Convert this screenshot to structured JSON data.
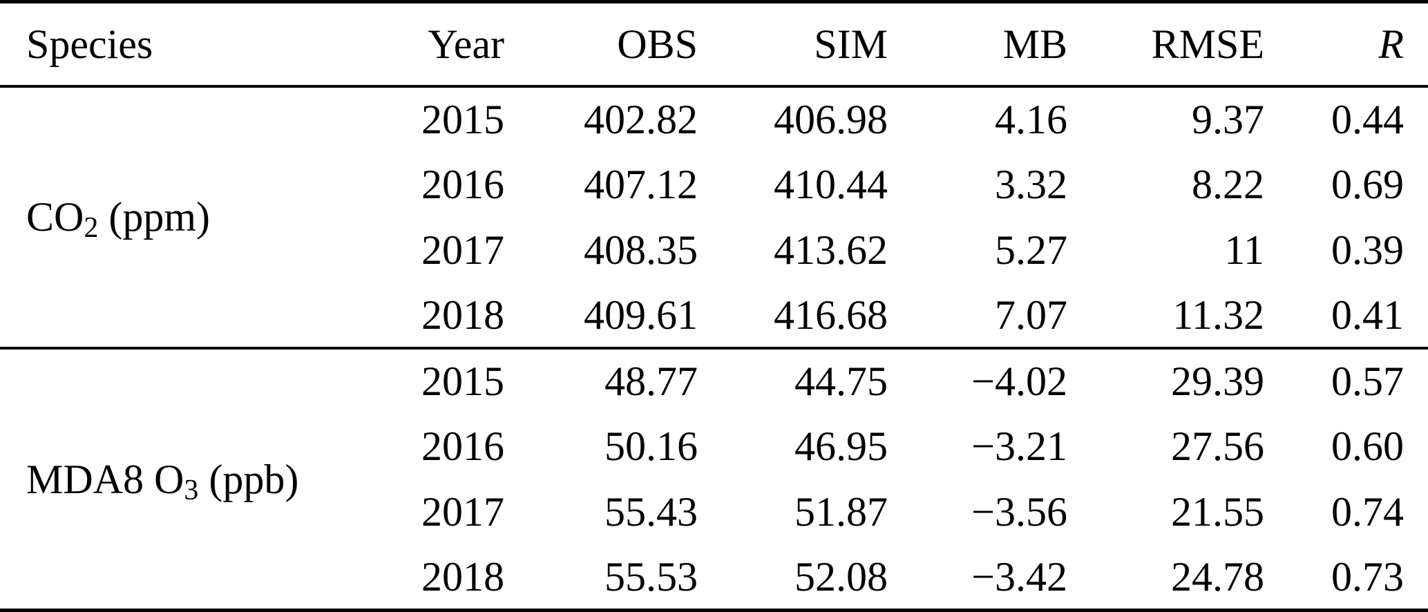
{
  "table": {
    "headers": {
      "species": "Species",
      "year": "Year",
      "obs": "OBS",
      "sim": "SIM",
      "mb": "MB",
      "rmse": "RMSE",
      "r": "R"
    },
    "groups": [
      {
        "species_base": "CO",
        "species_sub": "2",
        "species_suffix": " (ppm)",
        "species_full": "CO2 (ppm)",
        "rows": [
          {
            "year": "2015",
            "obs": "402.82",
            "sim": "406.98",
            "mb": "4.16",
            "rmse": "9.37",
            "r": "0.44"
          },
          {
            "year": "2016",
            "obs": "407.12",
            "sim": "410.44",
            "mb": "3.32",
            "rmse": "8.22",
            "r": "0.69"
          },
          {
            "year": "2017",
            "obs": "408.35",
            "sim": "413.62",
            "mb": "5.27",
            "rmse": "11",
            "r": "0.39"
          },
          {
            "year": "2018",
            "obs": "409.61",
            "sim": "416.68",
            "mb": "7.07",
            "rmse": "11.32",
            "r": "0.41"
          }
        ]
      },
      {
        "species_base": "MDA8 O",
        "species_sub": "3",
        "species_suffix": " (ppb)",
        "species_full": "MDA8 O3 (ppb)",
        "rows": [
          {
            "year": "2015",
            "obs": "48.77",
            "sim": "44.75",
            "mb": "−4.02",
            "rmse": "29.39",
            "r": "0.57"
          },
          {
            "year": "2016",
            "obs": "50.16",
            "sim": "46.95",
            "mb": "−3.21",
            "rmse": "27.56",
            "r": "0.60"
          },
          {
            "year": "2017",
            "obs": "55.43",
            "sim": "51.87",
            "mb": "−3.56",
            "rmse": "21.55",
            "r": "0.74"
          },
          {
            "year": "2018",
            "obs": "55.53",
            "sim": "52.08",
            "mb": "−3.42",
            "rmse": "24.78",
            "r": "0.73"
          }
        ]
      }
    ]
  }
}
